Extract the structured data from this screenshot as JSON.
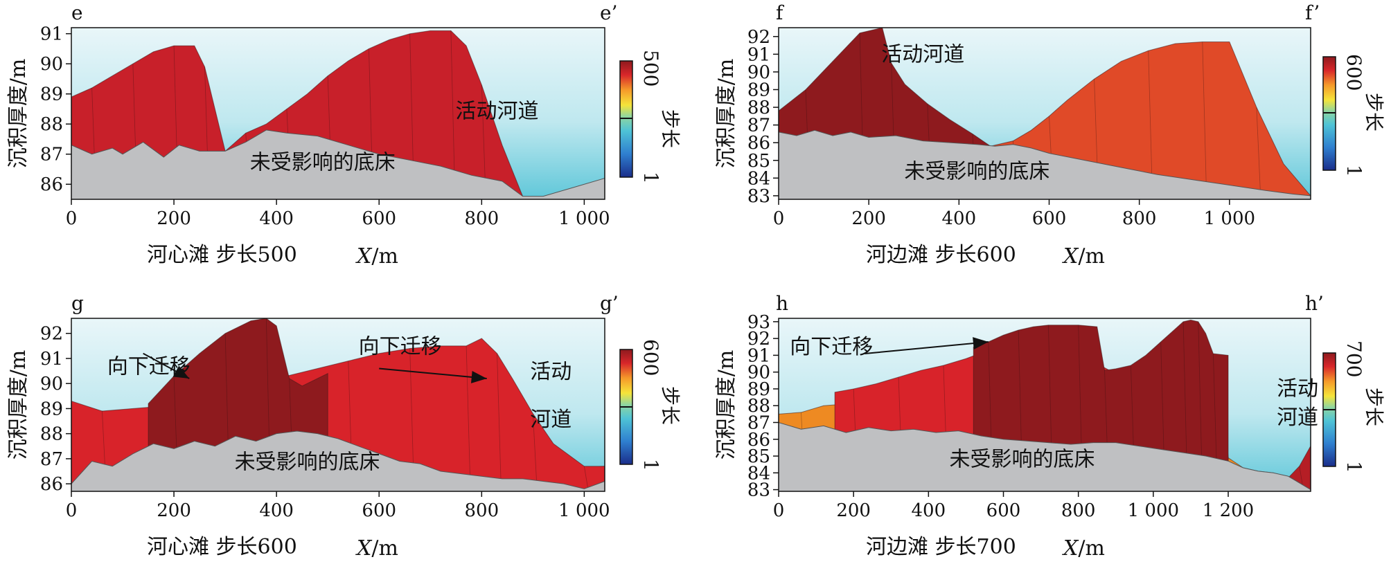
{
  "chart_data": [
    {
      "type": "area",
      "panel": "e",
      "corner_left": "e",
      "corner_right": "e’",
      "caption": "河心滩 步长500",
      "xlabel_italic": "X",
      "xlabel_unit": "/m",
      "ylabel": "沉积厚度/m",
      "xlim": [
        0,
        1040
      ],
      "ylim": [
        85.5,
        91.2
      ],
      "xticks": [
        0,
        200,
        400,
        600,
        800,
        1000
      ],
      "xtick_labels": [
        "0",
        "200",
        "400",
        "600",
        "800",
        "1 000"
      ],
      "yticks": [
        86,
        87,
        88,
        89,
        90,
        91
      ],
      "colorbar": {
        "max_label": "500",
        "min_label": "1",
        "title": "步长"
      },
      "annotations": [
        "活动河道",
        "未受影响的底床"
      ],
      "water_surface": {
        "x": [
          0,
          1040
        ],
        "y": [
          91.2,
          91.2
        ]
      },
      "bed": {
        "x": [
          0,
          40,
          80,
          100,
          140,
          180,
          210,
          250,
          280,
          300,
          340,
          380,
          420,
          480,
          540,
          600,
          660,
          720,
          780,
          840,
          880,
          920,
          980,
          1040
        ],
        "y": [
          87.3,
          87.0,
          87.2,
          87.0,
          87.4,
          86.9,
          87.3,
          87.1,
          87.1,
          87.1,
          87.4,
          87.8,
          87.7,
          87.6,
          87.3,
          87.0,
          86.8,
          86.6,
          86.3,
          86.1,
          85.6,
          85.6,
          85.9,
          86.2
        ]
      },
      "layers": [
        {
          "name": "early",
          "color": "#e8512a",
          "x": [
            300,
            340,
            380,
            420,
            460,
            500,
            540,
            580,
            620,
            660,
            700,
            740,
            780,
            820,
            860,
            880
          ],
          "y": [
            87.1,
            87.4,
            87.8,
            88.1,
            88.4,
            88.7,
            88.8,
            88.7,
            88.5,
            88.2,
            87.9,
            87.5,
            87.1,
            86.7,
            86.1,
            85.6
          ]
        },
        {
          "name": "late",
          "color": "#c8202a",
          "x": [
            0,
            40,
            80,
            120,
            160,
            200,
            240,
            260,
            300,
            340,
            380,
            420,
            460,
            500,
            540,
            580,
            620,
            660,
            700,
            740,
            770,
            800,
            840,
            880
          ],
          "y": [
            88.9,
            89.2,
            89.6,
            90.0,
            90.4,
            90.6,
            90.6,
            89.9,
            87.1,
            87.7,
            88.0,
            88.5,
            89.0,
            89.6,
            90.1,
            90.5,
            90.8,
            91.0,
            91.1,
            91.1,
            90.6,
            89.3,
            87.3,
            85.6
          ]
        }
      ]
    },
    {
      "type": "area",
      "panel": "f",
      "corner_left": "f",
      "corner_right": "f’",
      "caption": "河边滩 步长600",
      "xlabel_italic": "X",
      "xlabel_unit": "/m",
      "ylabel": "沉积厚度/m",
      "xlim": [
        0,
        1180
      ],
      "ylim": [
        82.8,
        92.5
      ],
      "xticks": [
        0,
        200,
        400,
        600,
        800,
        1000
      ],
      "xtick_labels": [
        "0",
        "200",
        "400",
        "600",
        "800",
        "1 000"
      ],
      "yticks": [
        83,
        84,
        85,
        86,
        87,
        88,
        89,
        90,
        91,
        92
      ],
      "colorbar": {
        "max_label": "600",
        "min_label": "1",
        "title": "步长"
      },
      "annotations": [
        "活动河道",
        "未受影响的底床"
      ],
      "bed": {
        "x": [
          0,
          40,
          80,
          120,
          160,
          200,
          260,
          320,
          380,
          440,
          480,
          520,
          560,
          600,
          680,
          760,
          840,
          920,
          1000,
          1080,
          1140,
          1180
        ],
        "y": [
          86.6,
          86.4,
          86.7,
          86.4,
          86.6,
          86.3,
          86.4,
          86.1,
          86.0,
          85.9,
          85.8,
          85.9,
          85.7,
          85.4,
          85.0,
          84.6,
          84.2,
          83.9,
          83.6,
          83.3,
          83.1,
          83.0
        ]
      },
      "layers": [
        {
          "name": "early",
          "color": "#e04a28",
          "x": [
            0,
            60,
            120,
            180,
            240,
            300,
            360,
            420,
            470,
            520,
            560,
            600,
            640,
            700,
            760,
            820,
            880,
            940,
            1000,
            1060,
            1120,
            1180
          ],
          "y": [
            87.6,
            88.6,
            89.2,
            89.0,
            88.5,
            87.9,
            87.2,
            86.5,
            85.8,
            86.1,
            86.7,
            87.5,
            88.4,
            89.6,
            90.6,
            91.2,
            91.6,
            91.7,
            91.7,
            88.0,
            84.8,
            83.0
          ]
        },
        {
          "name": "late",
          "color": "#8e1a1e",
          "x": [
            0,
            60,
            120,
            180,
            230,
            250,
            280,
            330,
            380,
            430,
            470
          ],
          "y": [
            87.8,
            89.0,
            90.6,
            92.2,
            92.5,
            90.5,
            89.3,
            88.2,
            87.3,
            86.5,
            85.8
          ]
        }
      ]
    },
    {
      "type": "area",
      "panel": "g",
      "corner_left": "g",
      "corner_right": "g’",
      "caption": "河心滩 步长600",
      "xlabel_italic": "X",
      "xlabel_unit": "/m",
      "ylabel": "沉积厚度/m",
      "xlim": [
        0,
        1040
      ],
      "ylim": [
        85.7,
        92.6
      ],
      "xticks": [
        0,
        200,
        400,
        600,
        800,
        1000
      ],
      "xtick_labels": [
        "0",
        "200",
        "400",
        "600",
        "800",
        "1 000"
      ],
      "yticks": [
        86,
        87,
        88,
        89,
        90,
        91,
        92
      ],
      "colorbar": {
        "max_label": "600",
        "min_label": "1",
        "title": "步长"
      },
      "annotations": [
        "向下迁移",
        "向下迁移",
        "活动河道",
        "未受影响的底床"
      ],
      "bed": {
        "x": [
          0,
          40,
          80,
          120,
          160,
          200,
          240,
          280,
          320,
          360,
          400,
          440,
          480,
          520,
          560,
          600,
          640,
          680,
          720,
          760,
          800,
          840,
          880,
          920,
          960,
          1000,
          1040
        ],
        "y": [
          86.0,
          86.9,
          86.7,
          87.2,
          87.6,
          87.4,
          87.7,
          87.5,
          87.9,
          87.7,
          88.0,
          88.1,
          88.0,
          87.8,
          87.5,
          87.2,
          86.9,
          86.8,
          86.5,
          86.4,
          86.3,
          86.2,
          86.2,
          86.1,
          86.0,
          85.8,
          86.1
        ]
      },
      "layers": [
        {
          "name": "lower",
          "color": "#e03a26",
          "x": [
            0,
            60,
            120,
            160,
            200,
            260,
            320,
            380,
            440,
            500,
            560,
            620,
            680,
            740,
            800,
            860,
            900,
            940,
            980,
            1040
          ],
          "y": [
            88.9,
            88.9,
            88.5,
            87.8,
            87.9,
            88.2,
            88.4,
            88.4,
            88.5,
            88.7,
            88.6,
            88.4,
            88.2,
            88.3,
            88.3,
            87.7,
            87.2,
            86.9,
            86.6,
            86.7
          ]
        },
        {
          "name": "upper-main",
          "color": "#d8232a",
          "x": [
            0,
            60,
            120,
            180,
            240,
            300,
            360,
            420,
            480,
            540,
            600,
            660,
            720,
            770,
            800,
            830,
            860,
            900,
            940,
            1000,
            1040
          ],
          "y": [
            89.3,
            88.9,
            89.0,
            89.1,
            89.5,
            89.8,
            90.0,
            90.3,
            90.6,
            90.9,
            91.2,
            91.4,
            91.5,
            91.5,
            91.8,
            91.2,
            90.2,
            88.8,
            87.6,
            86.7,
            86.7
          ]
        },
        {
          "name": "upper-dark",
          "color": "#8e1a1e",
          "x": [
            150,
            200,
            250,
            300,
            350,
            380,
            400,
            425,
            450,
            500
          ],
          "y": [
            89.2,
            90.3,
            91.2,
            92.0,
            92.5,
            92.6,
            92.3,
            90.2,
            89.9,
            90.4
          ]
        }
      ]
    },
    {
      "type": "area",
      "panel": "h",
      "corner_left": "h",
      "corner_right": "h’",
      "caption": "河边滩 步长700",
      "xlabel_italic": "X",
      "xlabel_unit": "/m",
      "ylabel": "沉积厚度/m",
      "xlim": [
        0,
        1420
      ],
      "ylim": [
        82.9,
        93.2
      ],
      "xticks": [
        0,
        200,
        400,
        600,
        800,
        1000,
        1200
      ],
      "xtick_labels": [
        "0",
        "200",
        "400",
        "600",
        "800",
        "1 000",
        "1 200"
      ],
      "yticks": [
        83,
        84,
        85,
        86,
        87,
        88,
        89,
        90,
        91,
        92,
        93
      ],
      "colorbar": {
        "max_label": "700",
        "min_label": "1",
        "title": "步长"
      },
      "annotations": [
        "向下迁移",
        "活动河道",
        "未受影响的底床"
      ],
      "bed": {
        "x": [
          0,
          60,
          120,
          180,
          240,
          300,
          360,
          420,
          480,
          540,
          600,
          660,
          720,
          780,
          840,
          900,
          960,
          1020,
          1080,
          1140,
          1200,
          1240,
          1280,
          1320,
          1360,
          1420
        ],
        "y": [
          87.0,
          86.6,
          86.8,
          86.4,
          86.7,
          86.5,
          86.6,
          86.4,
          86.5,
          86.2,
          86.0,
          85.9,
          85.8,
          85.7,
          85.8,
          85.8,
          85.6,
          85.4,
          85.2,
          85.0,
          84.7,
          84.3,
          84.1,
          84.0,
          83.8,
          83.0
        ]
      },
      "layers": [
        {
          "name": "yellow",
          "color": "#f0c020",
          "x": [
            500,
            560,
            620,
            680,
            740,
            800,
            860,
            900
          ],
          "y": [
            86.2,
            86.5,
            86.7,
            86.6,
            86.8,
            86.4,
            86.3,
            86.1
          ]
        },
        {
          "name": "orange",
          "color": "#ee8a22",
          "x": [
            0,
            60,
            120,
            180,
            240,
            300,
            360,
            420,
            480,
            540,
            600,
            660,
            720,
            780,
            840,
            900,
            960,
            1000,
            1040,
            1080,
            1120,
            1180,
            1200,
            1240,
            1280,
            1320,
            1360,
            1420
          ],
          "y": [
            87.5,
            87.6,
            88.0,
            88.1,
            88.3,
            88.5,
            88.6,
            88.2,
            87.7,
            87.2,
            86.9,
            87.1,
            87.4,
            87.6,
            87.8,
            87.4,
            88.5,
            89.3,
            90.2,
            90.8,
            91.0,
            90.9,
            84.9,
            84.3,
            84.1,
            84.0,
            83.7,
            83.0
          ]
        },
        {
          "name": "red",
          "color": "#d8232a",
          "x": [
            150,
            200,
            260,
            320,
            380,
            440,
            500,
            560,
            620,
            680,
            740,
            800,
            850,
            900,
            960,
            1000,
            1040,
            1080,
            1120,
            1170,
            1200
          ],
          "y": [
            88.8,
            89.0,
            89.3,
            89.7,
            90.1,
            90.4,
            90.8,
            91.3,
            91.8,
            92.1,
            92.3,
            92.1,
            90.5,
            89.9,
            90.2,
            90.6,
            91.0,
            91.0,
            91.0,
            90.9,
            84.9
          ]
        },
        {
          "name": "dark",
          "color": "#8e1a1e",
          "x": [
            520,
            560,
            600,
            640,
            680,
            720,
            760,
            800,
            850,
            870,
            900,
            940,
            980,
            1020,
            1060,
            1080,
            1100,
            1120,
            1140,
            1160,
            1200
          ],
          "y": [
            91.5,
            91.8,
            92.2,
            92.5,
            92.7,
            92.8,
            92.8,
            92.8,
            92.7,
            90.1,
            90.2,
            90.4,
            91.0,
            91.8,
            92.6,
            93.0,
            93.1,
            93.0,
            92.3,
            91.1,
            91.0
          ]
        },
        {
          "name": "right-end",
          "color": "#b51e25",
          "x": [
            1360,
            1390,
            1420
          ],
          "y": [
            83.7,
            84.4,
            85.6
          ]
        }
      ]
    }
  ],
  "colors": {
    "sky_top": "#e9f6f9",
    "sky_bottom": "#5fc7d9",
    "bed": "#bfc0c2",
    "axis": "#111111",
    "colorbar_stops": [
      "#1a2d8a",
      "#2f7fcf",
      "#4fc3d6",
      "#8fd6a0",
      "#f5e43a",
      "#f59a2a",
      "#d8262a",
      "#8e1a1e"
    ]
  }
}
